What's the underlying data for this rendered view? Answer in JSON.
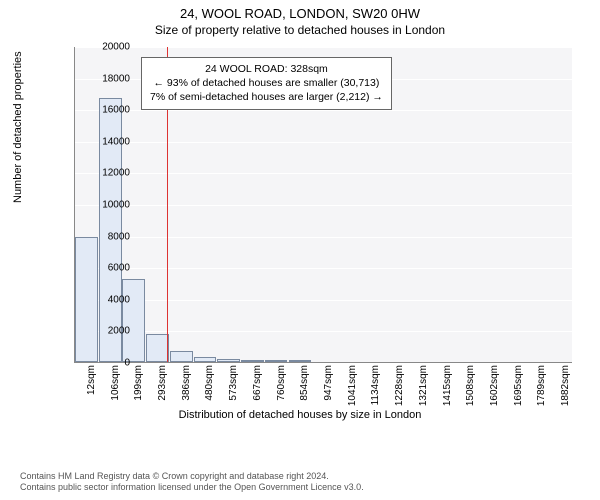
{
  "title": {
    "line1": "24, WOOL ROAD, LONDON, SW20 0HW",
    "line2": "Size of property relative to detached houses in London"
  },
  "chart": {
    "type": "bar",
    "background_color": "#f5f5f7",
    "grid_color": "#ffffff",
    "bar_fill": "#e2eaf6",
    "bar_border": "#7a8aa0",
    "marker_color": "#d33",
    "ylabel": "Number of detached properties",
    "xlabel": "Distribution of detached houses by size in London",
    "ylim": [
      0,
      20000
    ],
    "ytick_step": 2000,
    "yticks": [
      0,
      2000,
      4000,
      6000,
      8000,
      10000,
      12000,
      14000,
      16000,
      18000,
      20000
    ],
    "xticks": [
      "12sqm",
      "106sqm",
      "199sqm",
      "293sqm",
      "386sqm",
      "480sqm",
      "573sqm",
      "667sqm",
      "760sqm",
      "854sqm",
      "947sqm",
      "1041sqm",
      "1134sqm",
      "1228sqm",
      "1321sqm",
      "1415sqm",
      "1508sqm",
      "1602sqm",
      "1695sqm",
      "1789sqm",
      "1882sqm"
    ],
    "xtick_step_sqm": 93.5,
    "x_min_sqm": 12,
    "x_max_sqm": 1882,
    "bars": [
      {
        "x_sqm": 12,
        "value": 7900
      },
      {
        "x_sqm": 106,
        "value": 16700
      },
      {
        "x_sqm": 199,
        "value": 5250
      },
      {
        "x_sqm": 293,
        "value": 1750
      },
      {
        "x_sqm": 386,
        "value": 720
      },
      {
        "x_sqm": 480,
        "value": 300
      },
      {
        "x_sqm": 573,
        "value": 170
      },
      {
        "x_sqm": 667,
        "value": 100
      },
      {
        "x_sqm": 760,
        "value": 70
      },
      {
        "x_sqm": 854,
        "value": 50
      }
    ],
    "marker_sqm": 328,
    "infobox": {
      "line1": "24 WOOL ROAD: 328sqm",
      "line2": "← 93% of detached houses are smaller (30,713)",
      "line3": "7% of semi-detached houses are larger (2,212) →"
    }
  },
  "footer": {
    "line1": "Contains HM Land Registry data © Crown copyright and database right 2024.",
    "line2": "Contains public sector information licensed under the Open Government Licence v3.0."
  },
  "style": {
    "title_fontsize": 13,
    "subtitle_fontsize": 12,
    "tick_fontsize": 10,
    "axis_label_fontsize": 11,
    "infobox_fontsize": 10.5,
    "footer_fontsize": 9
  }
}
